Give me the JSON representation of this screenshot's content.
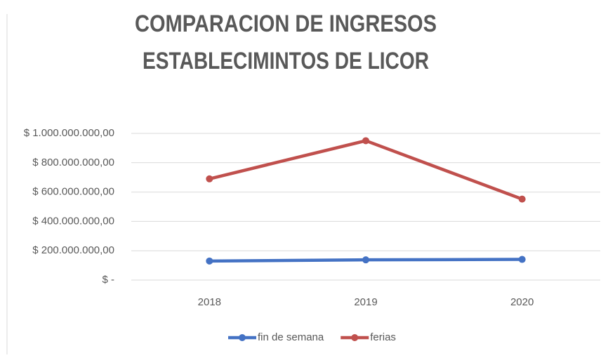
{
  "chart_data": {
    "type": "line",
    "title": [
      "COMPARACION DE INGRESOS",
      "ESTABLECIMINTOS DE LICOR"
    ],
    "categories": [
      "2018",
      "2019",
      "2020"
    ],
    "series": [
      {
        "name": "fin de semana",
        "color": "#4472c4",
        "values": [
          130000000,
          138000000,
          141000000
        ]
      },
      {
        "name": "ferias",
        "color": "#c0504d",
        "values": [
          690000000,
          950000000,
          552000000
        ]
      }
    ],
    "ylim": [
      0,
      1000000000
    ],
    "yticks": [
      {
        "value": 0,
        "label": "$ -"
      },
      {
        "value": 200000000,
        "label": "$ 200.000.000,00"
      },
      {
        "value": 400000000,
        "label": "$ 400.000.000,00"
      },
      {
        "value": 600000000,
        "label": "$ 600.000.000,00"
      },
      {
        "value": 800000000,
        "label": "$ 800.000.000,00"
      },
      {
        "value": 1000000000,
        "label": "$ 1.000.000.000,00"
      }
    ],
    "grid": true,
    "legend": "bottom"
  }
}
